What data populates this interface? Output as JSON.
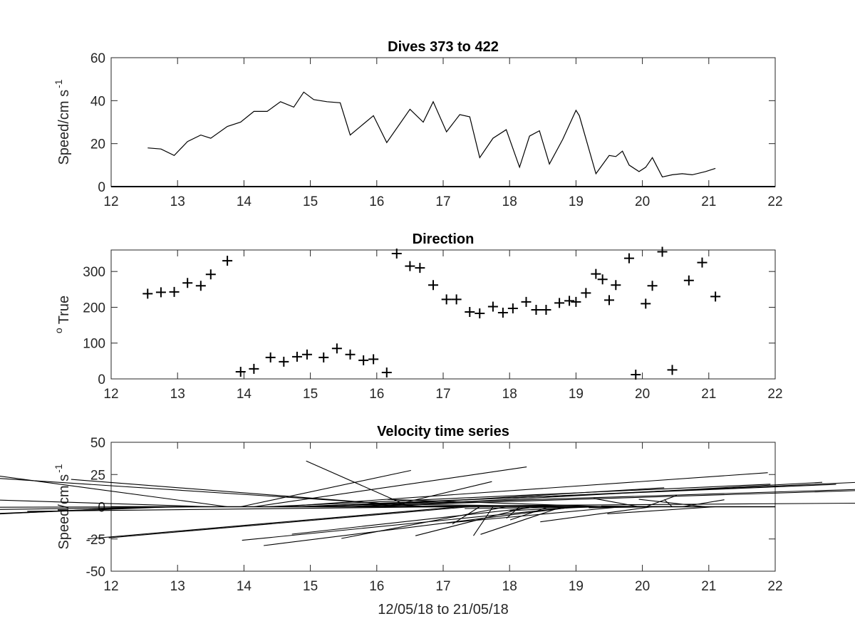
{
  "chart_data": [
    {
      "type": "line",
      "title": "Dives 373 to 422",
      "ylabel": "Speed/cm s",
      "ylabel_superscript": "-1",
      "xlabel": "",
      "xlim": [
        12,
        22
      ],
      "ylim": [
        0,
        60
      ],
      "xticks": [
        "12",
        "13",
        "14",
        "15",
        "16",
        "17",
        "18",
        "19",
        "20",
        "21",
        "22"
      ],
      "yticks": [
        "0",
        "20",
        "40",
        "60"
      ],
      "color": "#000000",
      "x": [
        12.55,
        12.75,
        12.95,
        13.15,
        13.35,
        13.5,
        13.75,
        13.95,
        14.15,
        14.35,
        14.55,
        14.75,
        14.9,
        15.05,
        15.25,
        15.45,
        15.6,
        15.95,
        16.15,
        16.5,
        16.7,
        16.85,
        17.05,
        17.25,
        17.4,
        17.55,
        17.75,
        17.95,
        18.15,
        18.3,
        18.45,
        18.6,
        18.8,
        19.0,
        19.05,
        19.3,
        19.5,
        19.6,
        19.7,
        19.8,
        19.95,
        20.05,
        20.15,
        20.3,
        20.45,
        20.6,
        20.75,
        20.95,
        21.1
      ],
      "y": [
        18,
        17.5,
        14.5,
        21,
        24,
        22.5,
        28,
        30,
        35,
        35,
        39.5,
        37,
        44,
        40.5,
        39.5,
        39,
        24,
        33,
        20.5,
        36,
        30,
        39.5,
        25.5,
        33.5,
        32.5,
        13.5,
        22.5,
        26.5,
        9,
        23.5,
        26,
        10.5,
        22,
        35.5,
        33,
        6,
        14.5,
        14,
        16.5,
        10,
        7,
        9,
        13.5,
        4.5,
        5.5,
        6,
        5.5,
        7,
        8.5
      ]
    },
    {
      "type": "scatter",
      "title": "Direction",
      "ylabel": "True",
      "ylabel_prefix_superscript": "o",
      "xlabel": "",
      "xlim": [
        12,
        22
      ],
      "ylim": [
        0,
        360
      ],
      "xticks": [
        "12",
        "13",
        "14",
        "15",
        "16",
        "17",
        "18",
        "19",
        "20",
        "21",
        "22"
      ],
      "yticks": [
        "0",
        "100",
        "200",
        "300"
      ],
      "marker": "+",
      "x": [
        12.55,
        12.75,
        12.95,
        13.15,
        13.35,
        13.5,
        13.75,
        13.95,
        14.15,
        14.4,
        14.6,
        14.8,
        14.95,
        15.2,
        15.4,
        15.6,
        15.8,
        15.95,
        16.15,
        16.3,
        16.5,
        16.65,
        16.85,
        17.05,
        17.2,
        17.4,
        17.55,
        17.75,
        17.9,
        18.05,
        18.25,
        18.4,
        18.55,
        18.75,
        18.9,
        19.0,
        19.15,
        19.3,
        19.4,
        19.5,
        19.6,
        19.8,
        19.9,
        20.05,
        20.15,
        20.3,
        20.45,
        20.7,
        20.9,
        21.1
      ],
      "y": [
        238,
        242,
        243,
        268,
        260,
        292,
        330,
        20,
        28,
        60,
        48,
        62,
        68,
        60,
        85,
        68,
        52,
        55,
        18,
        350,
        315,
        310,
        262,
        222,
        222,
        187,
        183,
        202,
        185,
        197,
        215,
        193,
        193,
        212,
        218,
        215,
        240,
        293,
        278,
        220,
        262,
        337,
        12,
        210,
        260,
        355,
        25,
        275,
        325,
        230
      ]
    },
    {
      "type": "quiver",
      "title": "Velocity time series",
      "ylabel": "Speed/cm s",
      "ylabel_superscript": "-1",
      "xlabel": "12/05/18 to 21/05/18",
      "xlim": [
        12,
        22
      ],
      "ylim": [
        -50,
        50
      ],
      "xticks": [
        "12",
        "13",
        "14",
        "15",
        "16",
        "17",
        "18",
        "19",
        "20",
        "21",
        "22"
      ],
      "yticks": [
        "-50",
        "-25",
        "0",
        "25",
        "50"
      ],
      "color": "#000000",
      "x": [
        12.55,
        12.75,
        12.95,
        13.15,
        13.35,
        13.5,
        13.75,
        13.95,
        14.15,
        14.35,
        14.55,
        14.75,
        14.9,
        15.05,
        15.25,
        15.45,
        15.6,
        15.95,
        16.15,
        16.5,
        16.7,
        16.85,
        17.05,
        17.25,
        17.4,
        17.55,
        17.75,
        17.95,
        18.15,
        18.3,
        18.45,
        18.6,
        18.8,
        19.0,
        19.05,
        19.3,
        19.5,
        19.6,
        19.7,
        19.8,
        19.95,
        20.05,
        20.15,
        20.3,
        20.45,
        20.6,
        20.75,
        20.95,
        21.1
      ],
      "speed": [
        18,
        17.5,
        14.5,
        21,
        24,
        22.5,
        28,
        30,
        35,
        35,
        39.5,
        37,
        44,
        40.5,
        39.5,
        39,
        24,
        33,
        20.5,
        36,
        30,
        39.5,
        25.5,
        33.5,
        32.5,
        13.5,
        22.5,
        26.5,
        9,
        23.5,
        26,
        10.5,
        22,
        35.5,
        33,
        6,
        14.5,
        14,
        16.5,
        10,
        7,
        9,
        13.5,
        4.5,
        5.5,
        6,
        5.5,
        7,
        8.5
      ],
      "direction_deg_true": [
        238,
        242,
        243,
        268,
        260,
        292,
        330,
        20,
        28,
        60,
        48,
        62,
        68,
        60,
        85,
        68,
        52,
        55,
        18,
        350,
        315,
        310,
        262,
        222,
        222,
        187,
        183,
        202,
        185,
        197,
        215,
        193,
        193,
        212,
        218,
        240,
        293,
        278,
        220,
        262,
        337,
        12,
        210,
        260,
        355,
        25,
        275,
        325,
        230
      ]
    }
  ]
}
